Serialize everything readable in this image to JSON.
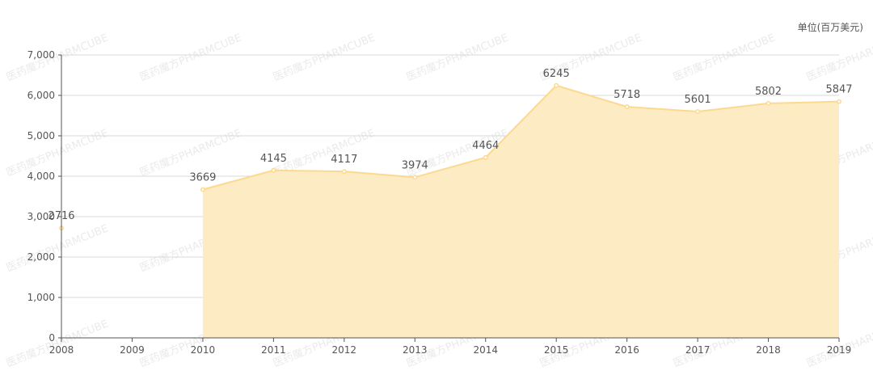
{
  "unit_label": "单位(百万美元)",
  "watermark": "医药魔方PHARMCUBE",
  "chart_data": {
    "type": "area",
    "title": "",
    "xlabel": "",
    "ylabel": "",
    "unit": "单位(百万美元)",
    "x": [
      "2008",
      "2009",
      "2010",
      "2011",
      "2012",
      "2013",
      "2014",
      "2015",
      "2016",
      "2017",
      "2018",
      "2019"
    ],
    "series": [
      {
        "values": [
          2716,
          null,
          3669,
          4145,
          4117,
          3974,
          4464,
          6245,
          5718,
          5601,
          5802,
          5847
        ],
        "data_labels": [
          "2716",
          "",
          "3669",
          "4145",
          "4117",
          "3974",
          "4464",
          "6245",
          "5718",
          "5601",
          "5802",
          "5847"
        ]
      }
    ],
    "ylim": [
      0,
      7000
    ],
    "yticks": [
      0,
      1000,
      2000,
      3000,
      4000,
      5000,
      6000,
      7000
    ],
    "ytick_labels": [
      "0",
      "1,000",
      "2,000",
      "3,000",
      "4,000",
      "5,000",
      "6,000",
      "7,000"
    ],
    "grid": true,
    "colors": {
      "area_fill": "#fdebc4",
      "line": "#fcd98f",
      "grid": "#d9d9d9",
      "axis": "#555555",
      "text": "#555555"
    }
  }
}
